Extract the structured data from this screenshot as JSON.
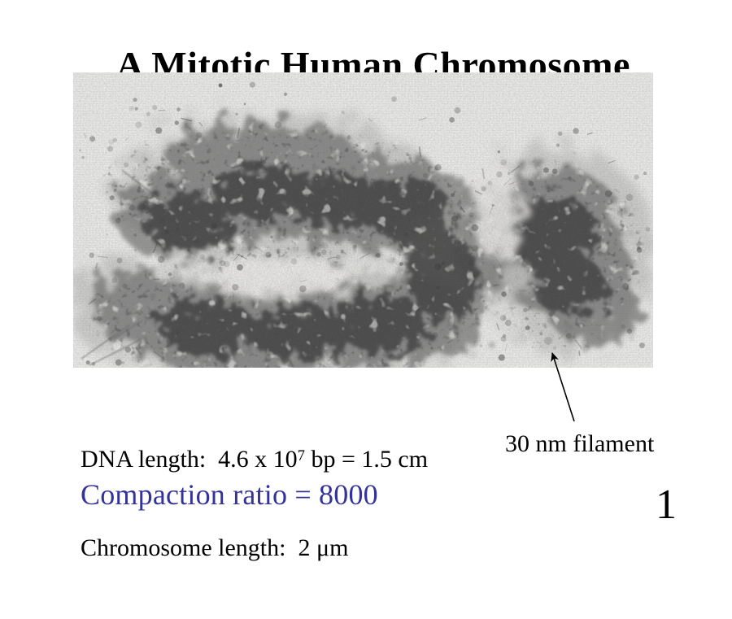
{
  "slide": {
    "title": "A Mitotic Human Chromosome",
    "page_number": "1",
    "background_color": "#ffffff"
  },
  "figure": {
    "annotation_label": "30 nm filament",
    "annotation_arrow_icon": "arrow-up-left",
    "colors": {
      "photo_background": "#ebebe9",
      "chromatin_dark": "#282828",
      "chromatin_mid": "#5f5f5f",
      "arrow": "#000000"
    }
  },
  "stats": {
    "dna_length": {
      "prefix": "DNA length:  4.6 x 10",
      "exponent": "7",
      "suffix": " bp = 1.5 cm"
    },
    "chromosome_length": "Chromosome length:  2 μm",
    "compaction_ratio": "Compaction ratio = 8000",
    "compaction_color": "#333399"
  }
}
